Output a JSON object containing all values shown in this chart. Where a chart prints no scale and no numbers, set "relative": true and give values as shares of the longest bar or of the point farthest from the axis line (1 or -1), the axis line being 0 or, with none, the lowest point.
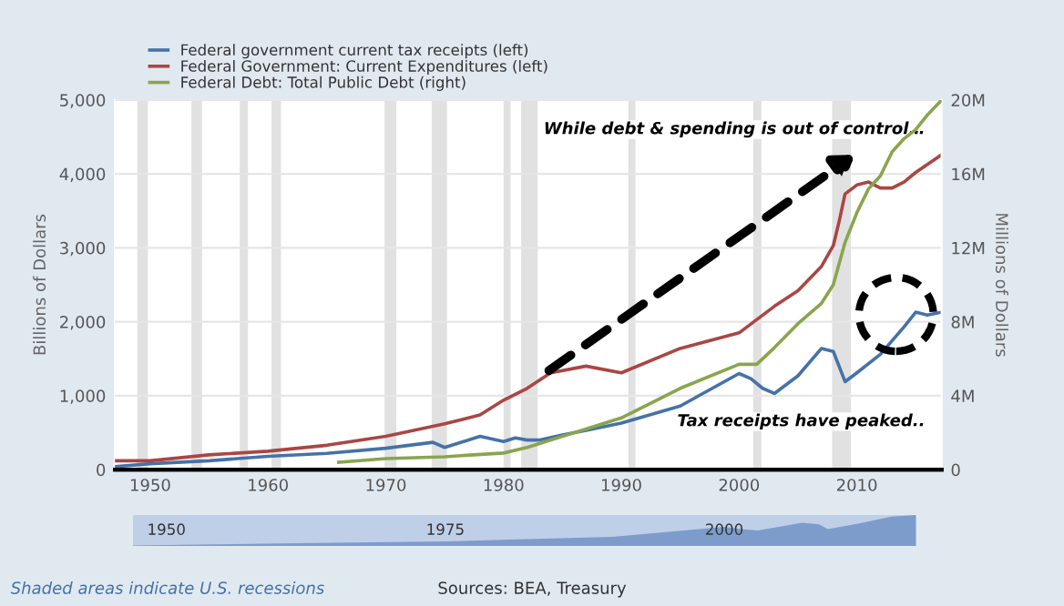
{
  "chart_data": [
    {
      "type": "line",
      "xlabel": null,
      "ylabel": "Billions of Dollars",
      "y2label": "Millions of Dollars",
      "series": [
        {
          "name": "Federal government current tax receipts (left)",
          "color": "#4572a7",
          "x": [
            1947,
            1950,
            1955,
            1960,
            1965,
            1970,
            1974,
            1975,
            1978,
            1980,
            1981,
            1982,
            1983,
            1985,
            1987,
            1990,
            1995,
            2000,
            2001,
            2002,
            2003,
            2005,
            2007,
            2008,
            2009,
            2010,
            2012,
            2014,
            2015,
            2016,
            2017.2
          ],
          "values": [
            40,
            80,
            120,
            180,
            220,
            290,
            370,
            300,
            450,
            380,
            430,
            400,
            400,
            470,
            530,
            630,
            860,
            1300,
            1230,
            1100,
            1030,
            1270,
            1640,
            1600,
            1190,
            1310,
            1560,
            1930,
            2130,
            2090,
            2130
          ]
        },
        {
          "name": "Federal Government: Current Expenditures (left)",
          "color": "#aa4643",
          "x": [
            1947,
            1950,
            1955,
            1960,
            1965,
            1970,
            1975,
            1978,
            1980,
            1982,
            1984,
            1987,
            1990,
            1995,
            2000,
            2003,
            2005,
            2007,
            2008,
            2008.5,
            2009,
            2010,
            2011,
            2012,
            2013,
            2014,
            2015,
            2017.2
          ],
          "values": [
            120,
            120,
            200,
            250,
            330,
            450,
            620,
            740,
            940,
            1100,
            1310,
            1400,
            1310,
            1640,
            1850,
            2210,
            2420,
            2750,
            3030,
            3360,
            3730,
            3850,
            3890,
            3810,
            3810,
            3890,
            4020,
            4260
          ]
        },
        {
          "name": "Federal Debt: Total Public Debt (right)",
          "color": "#89a54e",
          "axis": "y2",
          "x": [
            1966,
            1970,
            1975,
            1980,
            1982,
            1985,
            1987,
            1990,
            1995,
            2000,
            2001.5,
            2003,
            2005,
            2007,
            2008,
            2009,
            2010,
            2011,
            2012,
            2013,
            2014,
            2015,
            2016,
            2017.2
          ],
          "values": [
            0.4,
            0.6,
            0.7,
            0.9,
            1.2,
            1.8,
            2.2,
            2.8,
            4.4,
            5.7,
            5.7,
            6.6,
            7.9,
            9.0,
            10.0,
            12.3,
            13.9,
            15.2,
            15.9,
            17.2,
            17.9,
            18.4,
            19.2,
            20.0
          ]
        }
      ],
      "xlim": [
        1947,
        2017.2
      ],
      "xticks": [
        1950,
        1960,
        1970,
        1980,
        1990,
        2000,
        2010
      ],
      "ylim": [
        0,
        5000
      ],
      "yticks": [
        {
          "value": 0,
          "label": "0"
        },
        {
          "value": 1000,
          "label": "1,000"
        },
        {
          "value": 2000,
          "label": "2,000"
        },
        {
          "value": 3000,
          "label": "3,000"
        },
        {
          "value": 4000,
          "label": "4,000"
        },
        {
          "value": 5000,
          "label": "5,000"
        }
      ],
      "y2lim": [
        0,
        20
      ],
      "y2ticks": [
        0,
        {
          "value": 4,
          "label": "4M"
        },
        {
          "value": 8,
          "label": "8M"
        },
        {
          "value": 12,
          "label": "12M"
        },
        {
          "value": 16,
          "label": "16M"
        },
        {
          "value": 20,
          "label": "20M"
        }
      ],
      "bands": [
        {
          "axis": "x",
          "from": 1948.9,
          "to": 1949.8,
          "color": "#e1e1e1"
        },
        {
          "axis": "x",
          "from": 1953.5,
          "to": 1954.4,
          "color": "#e1e1e1"
        },
        {
          "axis": "x",
          "from": 1957.6,
          "to": 1958.3,
          "color": "#e1e1e1"
        },
        {
          "axis": "x",
          "from": 1960.3,
          "to": 1961.1,
          "color": "#e1e1e1"
        },
        {
          "axis": "x",
          "from": 1969.9,
          "to": 1970.9,
          "color": "#e1e1e1"
        },
        {
          "axis": "x",
          "from": 1973.9,
          "to": 1975.2,
          "color": "#e1e1e1"
        },
        {
          "axis": "x",
          "from": 1980.0,
          "to": 1980.6,
          "color": "#e1e1e1"
        },
        {
          "axis": "x",
          "from": 1981.5,
          "to": 1982.9,
          "color": "#e1e1e1"
        },
        {
          "axis": "x",
          "from": 1990.6,
          "to": 1991.2,
          "color": "#e1e1e1"
        },
        {
          "axis": "x",
          "from": 2001.2,
          "to": 2001.9,
          "color": "#e1e1e1"
        },
        {
          "axis": "x",
          "from": 2007.9,
          "to": 2009.5,
          "color": "#e1e1e1"
        }
      ],
      "annotations": [
        "While debt & spending is out of control…",
        "Tax receipts have peaked..",
        "Shaded areas indicate U.S. recessions",
        "Sources: BEA, Treasury"
      ],
      "grid": "y",
      "legend": "top left"
    },
    {
      "type": "area",
      "relative": true,
      "series": [
        {
          "color": "#7d9ccc",
          "x": [
            1947,
            1960,
            1975,
            1980,
            1990,
            2000,
            2001.5,
            2003,
            2007,
            2008.5,
            2009.3,
            2012,
            2015,
            2017.2
          ],
          "values": [
            0.02,
            0.08,
            0.15,
            0.2,
            0.3,
            0.62,
            0.55,
            0.5,
            0.75,
            0.7,
            0.55,
            0.72,
            0.95,
            1.0
          ]
        }
      ],
      "xlim": [
        1947,
        2017.2
      ],
      "xticks": [
        1950,
        1975,
        2000
      ]
    }
  ]
}
